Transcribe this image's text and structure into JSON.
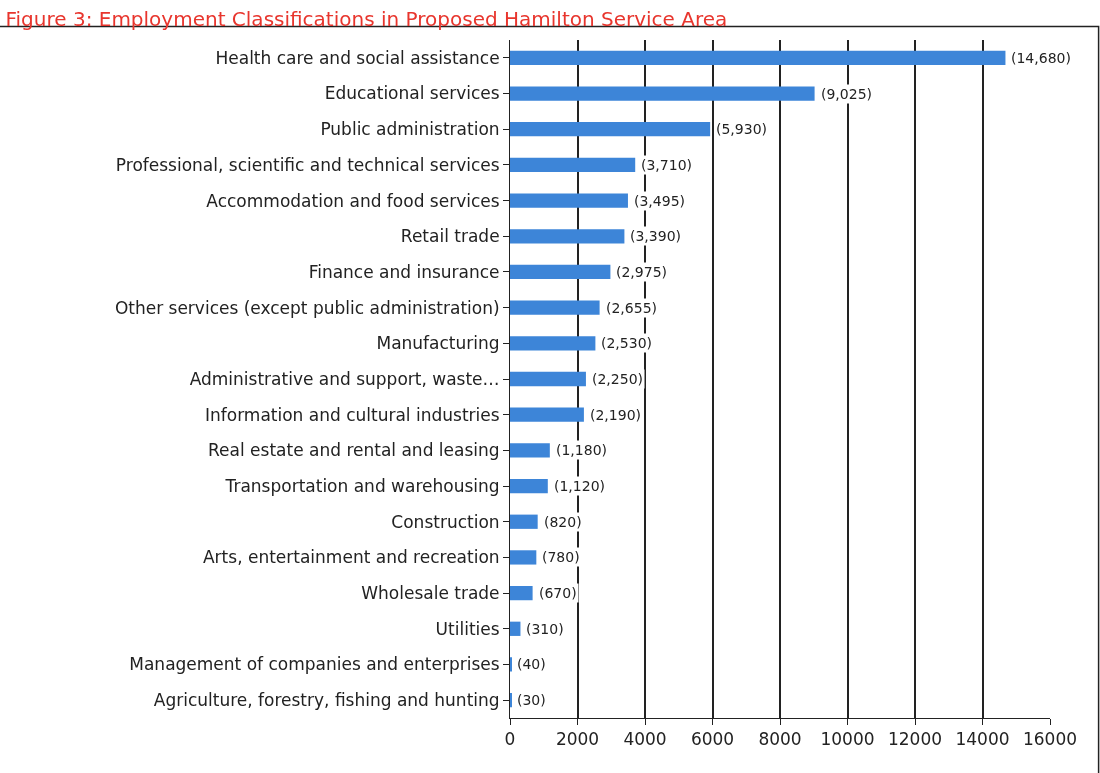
{
  "chart_data": {
    "type": "bar",
    "orientation": "horizontal",
    "title": "Figure 3: Employment Classifications in Proposed Hamilton Service Area",
    "categories": [
      "Health care and social assistance",
      "Educational services",
      "Public administration",
      "Professional, scientific and technical services",
      "Accommodation and food services",
      "Retail trade",
      "Finance and insurance",
      "Other services (except public administration)",
      "Manufacturing",
      "Administrative and support, waste…",
      "Information and cultural industries",
      "Real estate and rental and leasing",
      "Transportation and warehousing",
      "Construction",
      "Arts, entertainment and recreation",
      "Wholesale trade",
      "Utilities",
      "Management of companies and enterprises",
      "Agriculture, forestry, fishing and hunting"
    ],
    "values": [
      14680,
      9025,
      5930,
      3710,
      3495,
      3390,
      2975,
      2655,
      2530,
      2250,
      2190,
      1180,
      1120,
      820,
      780,
      670,
      310,
      40,
      30
    ],
    "value_labels": [
      "(14,680)",
      "(9,025)",
      "(5,930)",
      "(3,710)",
      "(3,495)",
      "(3,390)",
      "(2,975)",
      "(2,655)",
      "(2,530)",
      "(2,250)",
      "(2,190)",
      "(1,180)",
      "(1,120)",
      "(820)",
      "(780)",
      "(670)",
      "(310)",
      "(40)",
      "(30)"
    ],
    "color": "#3d85d8",
    "xlim": [
      0,
      16000
    ],
    "xticks": [
      0,
      2000,
      4000,
      6000,
      8000,
      10000,
      12000,
      14000,
      16000
    ],
    "grid": "x",
    "legend": false
  }
}
